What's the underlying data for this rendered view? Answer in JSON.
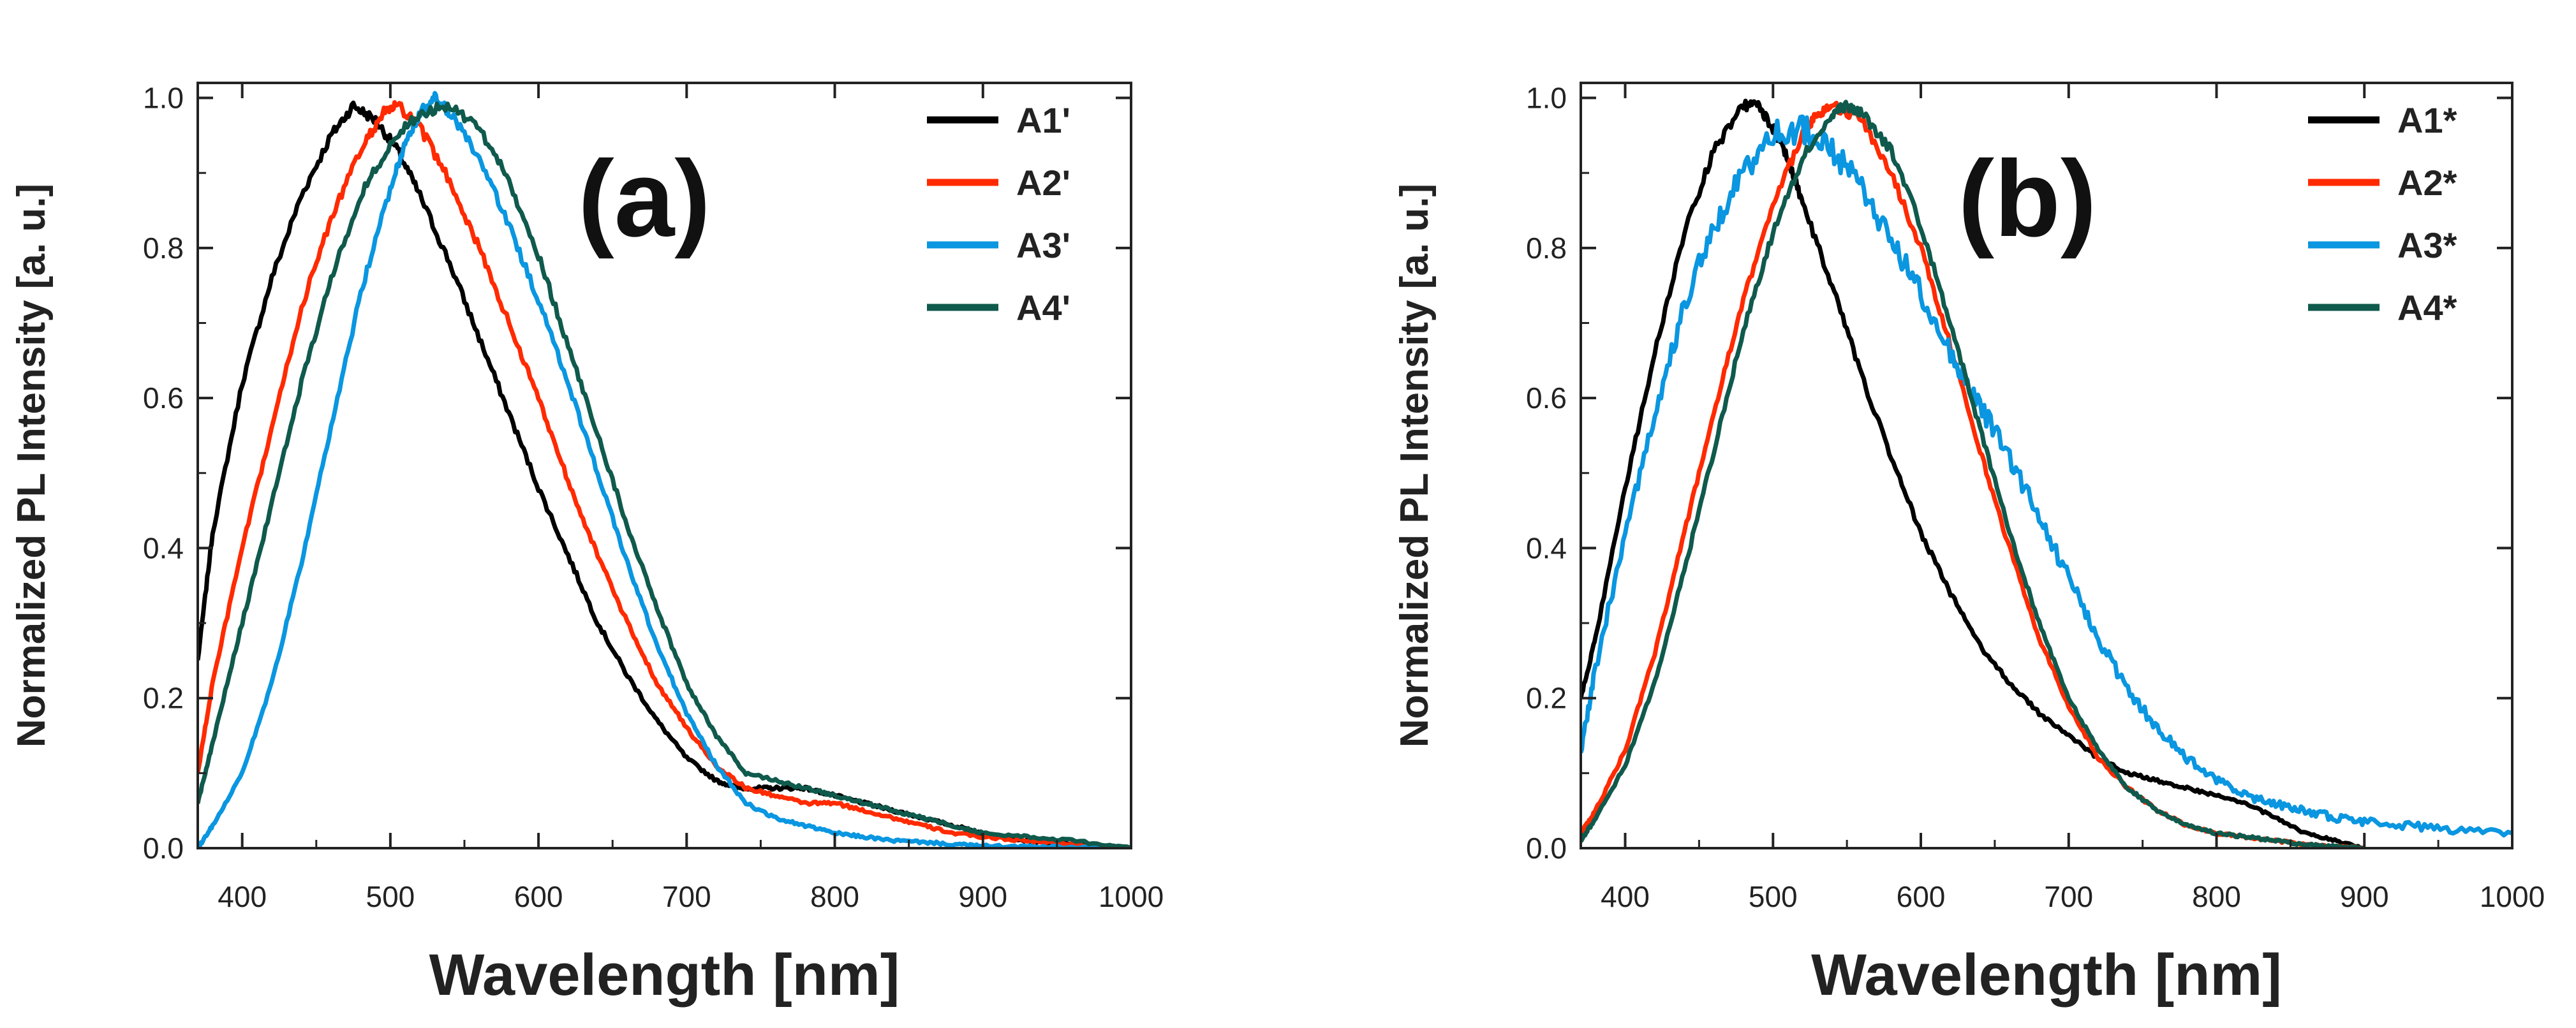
{
  "chart_data": [
    {
      "type": "line",
      "panel_label": "(a)",
      "xlabel": "Wavelength [nm]",
      "ylabel": "Normalized PL Intensity [a. u.]",
      "xlim": [
        370,
        1000
      ],
      "ylim": [
        0,
        1.02
      ],
      "xticks": [
        400,
        500,
        600,
        700,
        800,
        900,
        1000
      ],
      "yticks": [
        0.0,
        0.2,
        0.4,
        0.6,
        0.8,
        1.0
      ],
      "legend_position": "top-right",
      "series": [
        {
          "name": "A1'",
          "color": "#000000",
          "x": [
            370,
            380,
            400,
            420,
            440,
            460,
            475,
            490,
            505,
            520,
            540,
            560,
            580,
            600,
            620,
            640,
            660,
            680,
            700,
            720,
            735,
            750,
            765,
            780,
            800,
            820,
            840,
            860,
            880,
            900,
            930,
            960,
            1000
          ],
          "y": [
            0.25,
            0.42,
            0.62,
            0.76,
            0.87,
            0.95,
            0.99,
            0.97,
            0.93,
            0.87,
            0.78,
            0.68,
            0.58,
            0.48,
            0.39,
            0.3,
            0.23,
            0.17,
            0.12,
            0.09,
            0.08,
            0.08,
            0.08,
            0.08,
            0.07,
            0.06,
            0.05,
            0.04,
            0.03,
            0.02,
            0.01,
            0.005,
            0.0
          ]
        },
        {
          "name": "A2'",
          "color": "#ff2a00",
          "x": [
            370,
            380,
            400,
            420,
            440,
            460,
            480,
            495,
            505,
            520,
            540,
            560,
            580,
            600,
            620,
            640,
            660,
            680,
            700,
            720,
            740,
            760,
            780,
            800,
            820,
            840,
            860,
            880,
            900,
            930,
            960,
            1000
          ],
          "y": [
            0.1,
            0.22,
            0.4,
            0.56,
            0.72,
            0.84,
            0.93,
            0.98,
            0.99,
            0.96,
            0.89,
            0.8,
            0.7,
            0.6,
            0.49,
            0.39,
            0.3,
            0.22,
            0.16,
            0.11,
            0.08,
            0.07,
            0.06,
            0.06,
            0.05,
            0.04,
            0.03,
            0.02,
            0.015,
            0.01,
            0.005,
            0.0
          ]
        },
        {
          "name": "A3'",
          "color": "#0a96e0",
          "x": [
            370,
            380,
            400,
            420,
            440,
            460,
            480,
            500,
            510,
            520,
            530,
            540,
            560,
            580,
            600,
            620,
            640,
            660,
            680,
            700,
            720,
            740,
            760,
            780,
            800,
            820,
            840,
            860,
            880,
            900,
            930,
            960,
            1000
          ],
          "y": [
            0.0,
            0.03,
            0.1,
            0.22,
            0.38,
            0.56,
            0.74,
            0.88,
            0.94,
            0.98,
            1.0,
            0.98,
            0.92,
            0.83,
            0.73,
            0.62,
            0.5,
            0.38,
            0.27,
            0.18,
            0.11,
            0.06,
            0.04,
            0.03,
            0.02,
            0.015,
            0.01,
            0.008,
            0.005,
            0.003,
            0.002,
            0.001,
            0.0
          ]
        },
        {
          "name": "A4'",
          "color": "#0f5a4c",
          "x": [
            370,
            380,
            400,
            420,
            440,
            460,
            480,
            500,
            520,
            540,
            560,
            580,
            600,
            620,
            640,
            660,
            680,
            700,
            720,
            740,
            760,
            780,
            800,
            820,
            840,
            860,
            880,
            900,
            930,
            960,
            1000
          ],
          "y": [
            0.06,
            0.14,
            0.3,
            0.46,
            0.62,
            0.76,
            0.87,
            0.94,
            0.98,
            0.99,
            0.96,
            0.89,
            0.79,
            0.67,
            0.55,
            0.43,
            0.32,
            0.22,
            0.15,
            0.1,
            0.09,
            0.08,
            0.07,
            0.06,
            0.05,
            0.04,
            0.03,
            0.02,
            0.015,
            0.01,
            0.0
          ]
        }
      ]
    },
    {
      "type": "line",
      "panel_label": "(b)",
      "xlabel": "Wavelength [nm]",
      "ylabel": "Normalized PL Intensity [a. u.]",
      "xlim": [
        370,
        1000
      ],
      "ylim": [
        0,
        1.02
      ],
      "xticks": [
        400,
        500,
        600,
        700,
        800,
        900,
        1000
      ],
      "yticks": [
        0.0,
        0.2,
        0.4,
        0.6,
        0.8,
        1.0
      ],
      "legend_position": "top-right",
      "series": [
        {
          "name": "A1*",
          "color": "#000000",
          "x": [
            370,
            380,
            400,
            420,
            440,
            460,
            480,
            490,
            500,
            510,
            520,
            540,
            560,
            580,
            600,
            620,
            640,
            660,
            680,
            700,
            720,
            740,
            760,
            780,
            800,
            820,
            840,
            860,
            880,
            900
          ],
          "y": [
            0.2,
            0.28,
            0.48,
            0.66,
            0.82,
            0.93,
            0.99,
            0.99,
            0.96,
            0.92,
            0.86,
            0.75,
            0.63,
            0.52,
            0.42,
            0.34,
            0.27,
            0.22,
            0.18,
            0.15,
            0.12,
            0.1,
            0.09,
            0.08,
            0.07,
            0.06,
            0.04,
            0.02,
            0.01,
            0.0
          ]
        },
        {
          "name": "A2*",
          "color": "#ff2a00",
          "x": [
            370,
            380,
            400,
            420,
            440,
            460,
            480,
            500,
            520,
            530,
            540,
            560,
            580,
            600,
            620,
            640,
            660,
            680,
            700,
            720,
            740,
            760,
            780,
            800,
            820,
            840,
            860,
            880,
            900
          ],
          "y": [
            0.02,
            0.05,
            0.13,
            0.26,
            0.42,
            0.58,
            0.73,
            0.86,
            0.95,
            0.98,
            0.99,
            0.97,
            0.9,
            0.8,
            0.67,
            0.53,
            0.4,
            0.28,
            0.19,
            0.12,
            0.08,
            0.05,
            0.03,
            0.02,
            0.015,
            0.01,
            0.005,
            0.002,
            0.0
          ]
        },
        {
          "name": "A3*",
          "color": "#0a96e0",
          "x": [
            370,
            380,
            400,
            420,
            440,
            460,
            480,
            500,
            520,
            540,
            560,
            580,
            600,
            620,
            640,
            660,
            680,
            700,
            720,
            740,
            760,
            780,
            800,
            820,
            840,
            860,
            880,
            900,
            930,
            960,
            1000
          ],
          "y": [
            0.13,
            0.24,
            0.42,
            0.58,
            0.72,
            0.83,
            0.9,
            0.95,
            0.96,
            0.93,
            0.88,
            0.81,
            0.74,
            0.66,
            0.59,
            0.52,
            0.44,
            0.36,
            0.28,
            0.21,
            0.16,
            0.12,
            0.09,
            0.07,
            0.06,
            0.05,
            0.04,
            0.035,
            0.03,
            0.025,
            0.02
          ]
        },
        {
          "name": "A4*",
          "color": "#0f5a4c",
          "x": [
            370,
            380,
            400,
            420,
            440,
            460,
            480,
            500,
            520,
            540,
            550,
            560,
            580,
            600,
            620,
            640,
            660,
            680,
            700,
            720,
            740,
            760,
            780,
            800,
            820,
            840,
            860,
            880,
            900
          ],
          "y": [
            0.01,
            0.04,
            0.11,
            0.22,
            0.37,
            0.53,
            0.69,
            0.82,
            0.92,
            0.98,
            0.99,
            0.98,
            0.93,
            0.83,
            0.7,
            0.56,
            0.42,
            0.3,
            0.2,
            0.13,
            0.08,
            0.05,
            0.03,
            0.02,
            0.015,
            0.01,
            0.005,
            0.002,
            0.0
          ]
        }
      ]
    }
  ]
}
